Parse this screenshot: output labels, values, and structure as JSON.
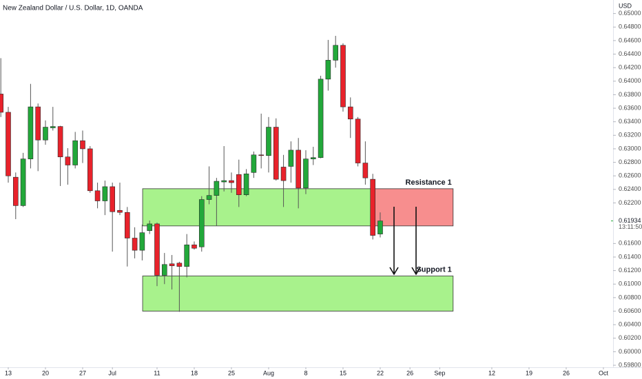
{
  "chart_data": {
    "type": "candlestick",
    "title": "New Zealand Dollar / U.S. Dollar, 1D, OANDA",
    "axis_unit": "USD",
    "up_color": "#22a83a",
    "down_color": "#e8222b",
    "open": [
      0.6381,
      0.6354,
      0.6258,
      0.6216,
      0.6285,
      0.6362,
      0.6313,
      0.6331,
      0.6333,
      0.6288,
      0.6276,
      0.6312,
      0.63,
      0.6238,
      0.6223,
      0.6244,
      0.6209,
      0.6206,
      0.6168,
      0.615,
      0.6179,
      0.6189,
      0.6113,
      0.613,
      0.6131,
      0.6126,
      0.6158,
      0.6155,
      0.6225,
      0.6231,
      0.6251,
      0.6253,
      0.6262,
      0.6232,
      0.6265,
      0.6291,
      0.629,
      0.6332,
      0.6273,
      0.6274,
      0.6298,
      0.6242,
      0.6285,
      0.6287,
      0.6403,
      0.6431,
      0.6453,
      0.6362,
      0.6344,
      0.6279,
      0.6255,
      0.6174
    ],
    "high": [
      0.6434,
      0.6362,
      0.6265,
      0.6294,
      0.6396,
      0.6367,
      0.6342,
      0.6362,
      0.6334,
      0.6301,
      0.6325,
      0.6327,
      0.6304,
      0.625,
      0.6253,
      0.625,
      0.625,
      0.6214,
      0.6184,
      0.6188,
      0.6194,
      0.6191,
      0.6146,
      0.6143,
      0.6133,
      0.6174,
      0.6163,
      0.623,
      0.6274,
      0.6257,
      0.6304,
      0.6265,
      0.6284,
      0.627,
      0.6296,
      0.6352,
      0.6347,
      0.6345,
      0.6291,
      0.6311,
      0.6316,
      0.6298,
      0.6303,
      0.6408,
      0.6461,
      0.6467,
      0.6456,
      0.6376,
      0.6347,
      0.6311,
      0.6263,
      0.6206
    ],
    "low": [
      0.6347,
      0.625,
      0.6196,
      0.6214,
      0.6271,
      0.6267,
      0.6306,
      0.6327,
      0.6245,
      0.6247,
      0.6271,
      0.6279,
      0.6235,
      0.6212,
      0.6202,
      0.6148,
      0.6202,
      0.6126,
      0.6138,
      0.6135,
      0.6174,
      0.6097,
      0.61,
      0.6092,
      0.6059,
      0.611,
      0.6151,
      0.6148,
      0.6218,
      0.6186,
      0.6237,
      0.6235,
      0.6214,
      0.623,
      0.6257,
      0.6271,
      0.6265,
      0.6253,
      0.6214,
      0.625,
      0.6212,
      0.6233,
      0.6276,
      0.6286,
      0.6386,
      0.642,
      0.6355,
      0.6316,
      0.6274,
      0.6247,
      0.6166,
      0.6169
    ],
    "close": [
      0.6354,
      0.626,
      0.6216,
      0.6285,
      0.6362,
      0.6313,
      0.6332,
      0.6333,
      0.6288,
      0.6276,
      0.6312,
      0.63,
      0.6238,
      0.6223,
      0.6244,
      0.6207,
      0.6206,
      0.6168,
      0.615,
      0.6176,
      0.6189,
      0.6113,
      0.6129,
      0.6127,
      0.6126,
      0.6158,
      0.6153,
      0.6225,
      0.6231,
      0.6252,
      0.6253,
      0.625,
      0.6232,
      0.6263,
      0.6291,
      0.629,
      0.6332,
      0.6255,
      0.6253,
      0.6298,
      0.6242,
      0.6285,
      0.6287,
      0.6403,
      0.6431,
      0.6453,
      0.6362,
      0.6344,
      0.6279,
      0.6257,
      0.6172,
      0.61934
    ],
    "last_price_label": "0.61934",
    "countdown": "13:11:50",
    "xlim": [
      -0.11,
      82.3
    ],
    "ylim": [
      0.5977,
      0.652
    ],
    "xticks": [
      {
        "value": 1,
        "label": "13"
      },
      {
        "value": 6,
        "label": "20"
      },
      {
        "value": 11,
        "label": "27"
      },
      {
        "value": 15,
        "label": "Jul"
      },
      {
        "value": 21,
        "label": "11"
      },
      {
        "value": 26,
        "label": "18"
      },
      {
        "value": 31,
        "label": "25"
      },
      {
        "value": 36,
        "label": "Aug"
      },
      {
        "value": 41,
        "label": "8"
      },
      {
        "value": 46,
        "label": "15"
      },
      {
        "value": 51,
        "label": "22"
      },
      {
        "value": 55,
        "label": "26"
      },
      {
        "value": 59,
        "label": "Sep"
      },
      {
        "value": 66,
        "label": "12"
      },
      {
        "value": 71,
        "label": "19"
      },
      {
        "value": 76,
        "label": "26"
      },
      {
        "value": 81,
        "label": "Oct"
      }
    ],
    "yticks": [
      {
        "value": 0.65,
        "label": "0.65000"
      },
      {
        "value": 0.648,
        "label": "0.64800"
      },
      {
        "value": 0.646,
        "label": "0.64600"
      },
      {
        "value": 0.644,
        "label": "0.64400"
      },
      {
        "value": 0.642,
        "label": "0.64200"
      },
      {
        "value": 0.64,
        "label": "0.64000"
      },
      {
        "value": 0.638,
        "label": "0.63800"
      },
      {
        "value": 0.636,
        "label": "0.63600"
      },
      {
        "value": 0.634,
        "label": "0.63400"
      },
      {
        "value": 0.632,
        "label": "0.63200"
      },
      {
        "value": 0.63,
        "label": "0.63000"
      },
      {
        "value": 0.628,
        "label": "0.62800"
      },
      {
        "value": 0.626,
        "label": "0.62600"
      },
      {
        "value": 0.624,
        "label": "0.62400"
      },
      {
        "value": 0.622,
        "label": "0.62200"
      },
      {
        "value": 0.616,
        "label": "0.61600"
      },
      {
        "value": 0.614,
        "label": "0.61400"
      },
      {
        "value": 0.612,
        "label": "0.61200"
      },
      {
        "value": 0.61,
        "label": "0.61000"
      },
      {
        "value": 0.608,
        "label": "0.60800"
      },
      {
        "value": 0.606,
        "label": "0.60600"
      },
      {
        "value": 0.604,
        "label": "0.60400"
      },
      {
        "value": 0.602,
        "label": "0.60200"
      },
      {
        "value": 0.6,
        "label": "0.60000"
      },
      {
        "value": 0.598,
        "label": "0.59800"
      }
    ],
    "zones": [
      {
        "label": "Resistance 1",
        "top": 0.6241,
        "bottom": 0.6186,
        "segments": [
          {
            "start": 19.06,
            "end": 49.9,
            "color": "#a8f28c"
          },
          {
            "start": 49.9,
            "end": 60.8,
            "color": "#f78e8e"
          }
        ]
      },
      {
        "label": "Support 1",
        "top": 0.6112,
        "bottom": 0.606,
        "segments": [
          {
            "start": 19.06,
            "end": 60.8,
            "color": "#a8f28c"
          }
        ]
      }
    ]
  }
}
